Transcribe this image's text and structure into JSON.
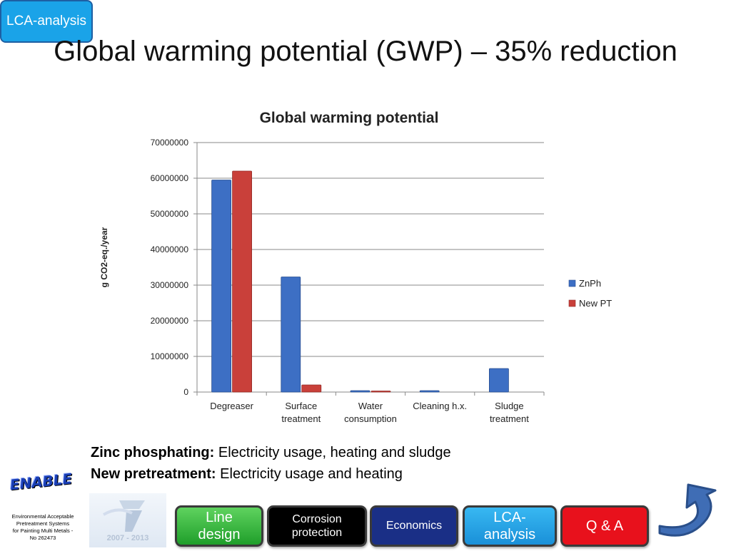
{
  "header": {
    "badge": "LCA-analysis",
    "title": "Global warming potential (GWP) – 35% reduction"
  },
  "chart_data": {
    "type": "bar",
    "title": "Global warming potential",
    "xlabel": "",
    "ylabel": "g CO2-eq./year",
    "ylim": [
      0,
      70000000
    ],
    "yticks": [
      "0",
      "10000000",
      "20000000",
      "30000000",
      "40000000",
      "50000000",
      "60000000",
      "70000000"
    ],
    "categories": [
      "Degreaser",
      "Surface treatment",
      "Water consumption",
      "Cleaning h.x.",
      "Sludge treatment"
    ],
    "category_lines": [
      [
        "Degreaser"
      ],
      [
        "Surface",
        "treatment"
      ],
      [
        "Water",
        "consumption"
      ],
      [
        "Cleaning h.x."
      ],
      [
        "Sludge",
        "treatment"
      ]
    ],
    "series": [
      {
        "name": "ZnPh",
        "color": "#3d6fc4",
        "values": [
          59500000,
          32300000,
          400000,
          400000,
          6600000
        ]
      },
      {
        "name": "New PT",
        "color": "#c9403a",
        "values": [
          62000000,
          2000000,
          300000,
          0,
          0
        ]
      }
    ],
    "legend_position": "right",
    "grid": true
  },
  "notes": [
    {
      "label": "Zinc phosphating:",
      "text": " Electricity usage, heating and sludge"
    },
    {
      "label": "New pretreatment:",
      "text": " Electricity usage and heating"
    }
  ],
  "footer": {
    "logo_text": "ENABLE",
    "org_lines": [
      "Environmental Acceptable",
      "Pretreatment Systems",
      "for Painting Multi Metals -",
      "No 262473"
    ],
    "fp7_label": "2007 - 2013"
  },
  "nav": [
    {
      "id": "line",
      "lines": [
        "Line",
        "design"
      ]
    },
    {
      "id": "corrosion",
      "lines": [
        "Corrosion",
        "protection"
      ]
    },
    {
      "id": "economics",
      "lines": [
        "Economics"
      ]
    },
    {
      "id": "lca",
      "lines": [
        "LCA-",
        "analysis"
      ]
    },
    {
      "id": "qa",
      "lines": [
        "Q & A"
      ]
    }
  ]
}
